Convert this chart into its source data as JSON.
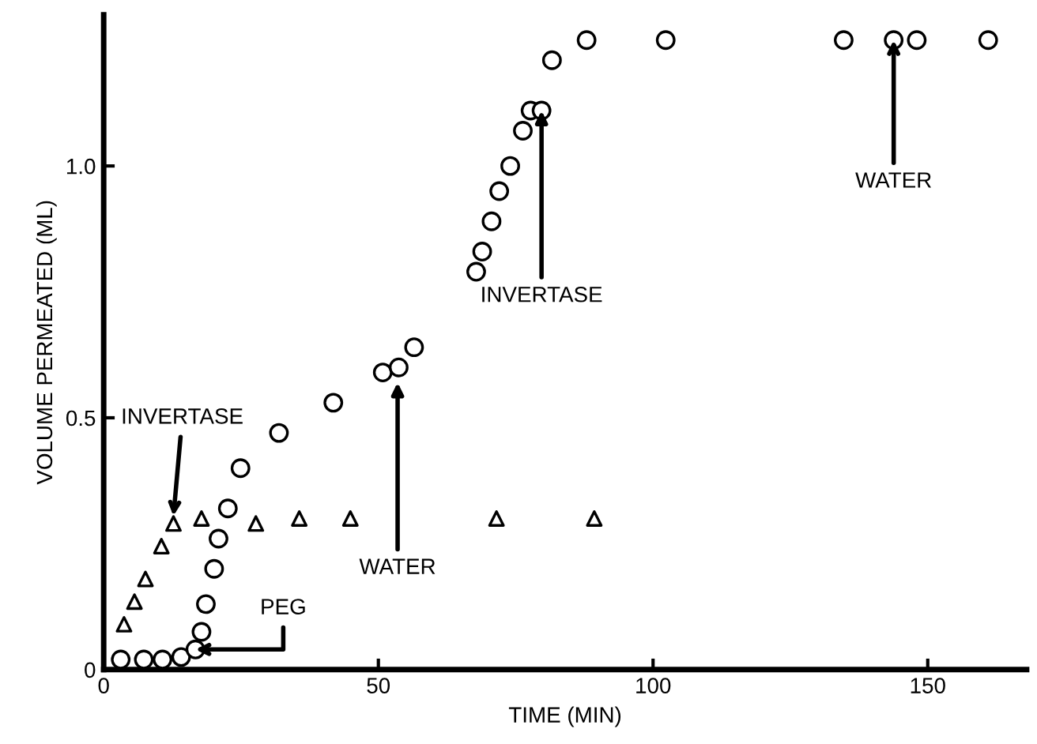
{
  "chart_data": {
    "type": "scatter",
    "xlabel": "TIME (MIN)",
    "ylabel": "VOLUME PERMEATED (ML)",
    "xlim": [
      0,
      168
    ],
    "xticks": [
      0,
      50,
      100,
      150
    ],
    "ylim": [
      0,
      1.3
    ],
    "yticks": [
      0,
      0.5,
      {
        "value": 1.0,
        "label": "1.0"
      }
    ],
    "grid": false,
    "legend": false,
    "series": [
      {
        "color": "#000000",
        "marker": "circle",
        "x": [
          3.1,
          7.3,
          10.7,
          14.1,
          16.7,
          17.8,
          18.6,
          20.1,
          20.9,
          22.6,
          24.9,
          31.9,
          41.8,
          50.8,
          53.7,
          56.5,
          67.8,
          68.9,
          70.6,
          72.0,
          74.0,
          76.3,
          77.7,
          79.7,
          81.6,
          87.9,
          102.3,
          134.7,
          143.8,
          148,
          161
        ],
        "values": [
          0.02,
          0.02,
          0.02,
          0.025,
          0.04,
          0.075,
          0.13,
          0.2,
          0.26,
          0.32,
          0.4,
          0.47,
          0.53,
          0.59,
          0.6,
          0.64,
          0.79,
          0.83,
          0.89,
          0.95,
          1.0,
          1.07,
          1.11,
          1.11,
          1.21,
          1.25,
          1.25,
          1.25,
          1.25,
          1.25,
          1.25
        ]
      },
      {
        "color": "#000000",
        "marker": "triangle",
        "x": [
          3.7,
          5.6,
          7.6,
          10.5,
          12.7,
          17.8,
          27.7,
          35.6,
          44.9,
          71.5,
          89.3
        ],
        "values": [
          0.09,
          0.135,
          0.18,
          0.245,
          0.29,
          0.3,
          0.29,
          0.3,
          0.3,
          0.3,
          0.3
        ]
      }
    ],
    "annotations": [
      {
        "text": "INVERTASE",
        "x": 12.7,
        "y": 0.305
      },
      {
        "text": "PEG",
        "x": 16.7,
        "y": 0.04
      },
      {
        "text": "WATER",
        "x": 53.5,
        "y": 0.57
      },
      {
        "text": "INVERTASE",
        "x": 79.7,
        "y": 1.11
      },
      {
        "text": "WATER",
        "x": 143.8,
        "y": 1.25
      }
    ]
  }
}
